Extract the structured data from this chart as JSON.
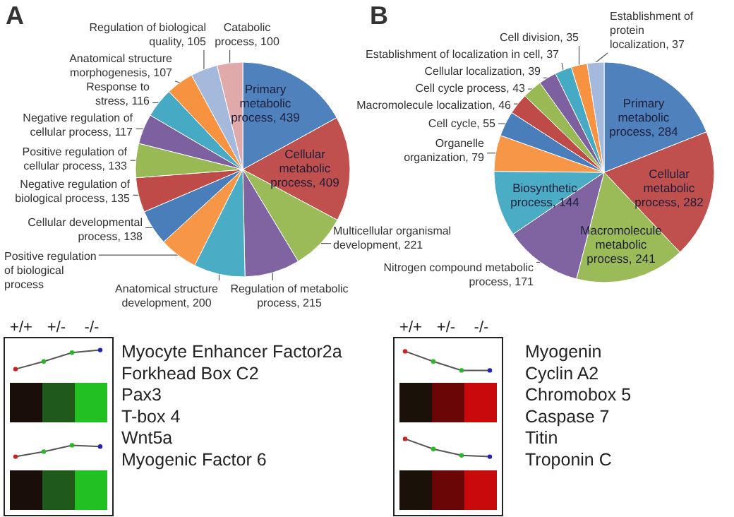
{
  "chart_data": [
    {
      "type": "pie",
      "title": "A",
      "data_labels": true,
      "categories": [
        "Primary metabolic process",
        "Cellular metabolic process",
        "Multicellular organismal development",
        "Regulation of metabolic process",
        "Anatomical structure development",
        "Positive regulation of biological process",
        "Cellular developmental process",
        "Negative regulation of biological process",
        "Positive regulation of cellular process",
        "Negative regulation of cellular process",
        "Response to stress",
        "Anatomical structure morphogenesis",
        "Regulation of biological quality",
        "Catabolic process"
      ],
      "values": [
        439,
        409,
        221,
        215,
        200,
        150,
        138,
        135,
        133,
        117,
        116,
        107,
        105,
        100
      ],
      "value_labels": [
        "439",
        "409",
        "221",
        "215",
        "200",
        null,
        "138",
        "135",
        "133",
        "117",
        "116",
        "107",
        "105",
        "100"
      ],
      "colors": [
        "#4f81bd",
        "#c0504d",
        "#9bbb59",
        "#8064a2",
        "#4bacc6",
        "#f79646",
        "#4a7ebb",
        "#be4b48",
        "#98b954",
        "#7d60a0",
        "#46aac5",
        "#f69240",
        "#a5b9dc",
        "#e0aaaa"
      ]
    },
    {
      "type": "pie",
      "title": "B",
      "data_labels": true,
      "categories": [
        "Primary metabolic process",
        "Cellular metabolic process",
        "Macromolecule metabolic process",
        "Nitrogen compound metabolic process",
        "Biosynthetic process",
        "Organelle organization",
        "Cell cycle",
        "Macromolecule localization",
        "Cell cycle process",
        "Cellular localization",
        "Establishment of localization in cell",
        "Cell division",
        "Establishment of protein localization"
      ],
      "values": [
        284,
        282,
        241,
        171,
        144,
        79,
        55,
        46,
        43,
        39,
        37,
        35,
        37
      ],
      "value_labels": [
        "284",
        "282",
        "241",
        "171",
        "144",
        "79",
        "55",
        "46",
        "43",
        "39",
        "37",
        "35",
        "37"
      ],
      "colors": [
        "#4f81bd",
        "#c0504d",
        "#9bbb59",
        "#8064a2",
        "#4bacc6",
        "#f79646",
        "#4a7ebb",
        "#be4b48",
        "#98b954",
        "#7d60a0",
        "#46aac5",
        "#f69240",
        "#a5b9dc"
      ]
    },
    {
      "type": "other",
      "categories": [
        "+/+",
        "+/-",
        "-/-"
      ],
      "annotations": [
        "Myocyte Enhancer Factor2a",
        "Forkhead Box C2",
        "Pax3",
        "T-box 4",
        "Wnt5a",
        "Myogenic Factor 6"
      ]
    },
    {
      "type": "other",
      "categories": [
        "+/+",
        "+/-",
        "-/-"
      ],
      "annotations": [
        "Myogenin",
        "Cyclin A2",
        "Chromobox 5",
        "Caspase 7",
        "Titin",
        "Troponin C"
      ]
    }
  ]
}
